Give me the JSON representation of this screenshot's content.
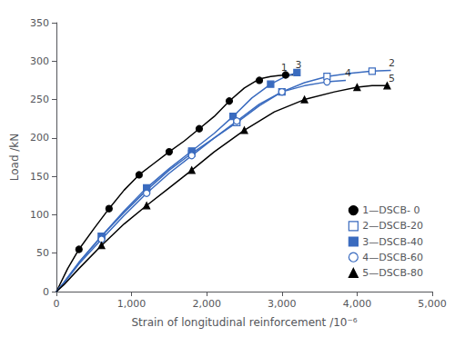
{
  "chart_data": {
    "type": "line",
    "xlabel": "Strain of longitudinal reinforcement /10⁻⁶",
    "ylabel": "Load /kN",
    "xlim": [
      0,
      5000
    ],
    "ylim": [
      0,
      350
    ],
    "xticks": [
      0,
      1000,
      2000,
      3000,
      4000,
      5000
    ],
    "yticks": [
      0,
      50,
      100,
      150,
      200,
      250,
      300,
      350
    ],
    "grid": false,
    "legend": "lower right",
    "series": [
      {
        "name": "1—DSCB- 0",
        "color": "black",
        "marker": "circle",
        "x": [
          0,
          50,
          150,
          300,
          500,
          700,
          900,
          1100,
          1300,
          1500,
          1700,
          1900,
          2100,
          2300,
          2500,
          2650,
          2750,
          2850,
          2950,
          3050,
          3150
        ],
        "values": [
          0,
          10,
          30,
          55,
          82,
          108,
          132,
          152,
          167,
          182,
          196,
          212,
          228,
          248,
          265,
          274,
          278,
          280,
          281,
          282,
          282
        ],
        "marker_x": [
          300,
          700,
          1100,
          1500,
          1900,
          2300,
          2700,
          3050
        ],
        "marker_values": [
          55,
          108,
          152,
          182,
          212,
          248,
          275,
          282
        ]
      },
      {
        "name": "2—DSCB-20",
        "color": "#3a6bbf",
        "marker": "open_square",
        "x": [
          0,
          100,
          300,
          600,
          900,
          1200,
          1500,
          1800,
          2100,
          2400,
          2700,
          3000,
          3300,
          3600,
          3900,
          4200,
          4450
        ],
        "values": [
          0,
          12,
          38,
          72,
          103,
          132,
          158,
          180,
          200,
          220,
          242,
          260,
          272,
          280,
          284,
          287,
          288
        ],
        "marker_x": [
          600,
          1200,
          1800,
          2400,
          3000,
          3600,
          4200
        ],
        "marker_values": [
          72,
          132,
          180,
          220,
          260,
          280,
          287
        ]
      },
      {
        "name": "3—DSCB-40",
        "color": "#3a6bbf",
        "marker": "square",
        "x": [
          0,
          100,
          300,
          600,
          900,
          1200,
          1500,
          1800,
          2100,
          2350,
          2600,
          2850,
          3050,
          3200
        ],
        "values": [
          0,
          12,
          38,
          72,
          105,
          135,
          160,
          183,
          206,
          228,
          252,
          270,
          280,
          285
        ],
        "marker_x": [
          600,
          1200,
          1800,
          2350,
          2850,
          3200
        ],
        "marker_values": [
          72,
          135,
          183,
          228,
          270,
          285
        ]
      },
      {
        "name": "4—DSCB-60",
        "color": "#3a6bbf",
        "marker": "open_circle",
        "x": [
          0,
          100,
          300,
          600,
          900,
          1200,
          1500,
          1800,
          2100,
          2400,
          2700,
          3000,
          3300,
          3600,
          3850
        ],
        "values": [
          0,
          11,
          36,
          68,
          99,
          128,
          154,
          177,
          200,
          222,
          244,
          260,
          268,
          273,
          275
        ],
        "marker_x": [
          600,
          1200,
          1800,
          2400,
          3000,
          3600
        ],
        "marker_values": [
          68,
          128,
          177,
          222,
          260,
          273
        ]
      },
      {
        "name": "5—DSCB-80",
        "color": "black",
        "marker": "triangle",
        "x": [
          0,
          100,
          300,
          600,
          900,
          1200,
          1500,
          1800,
          2100,
          2500,
          2900,
          3300,
          3700,
          4000,
          4200,
          4400
        ],
        "values": [
          0,
          9,
          30,
          60,
          88,
          112,
          135,
          158,
          182,
          210,
          234,
          250,
          260,
          266,
          268,
          268
        ],
        "marker_x": [
          600,
          1200,
          1800,
          2500,
          3300,
          4000,
          4400
        ],
        "marker_values": [
          60,
          112,
          158,
          210,
          250,
          266,
          268
        ]
      }
    ],
    "annotations": [
      {
        "text": "1",
        "x": 3030,
        "y": 284
      },
      {
        "text": "3",
        "x": 3220,
        "y": 287
      },
      {
        "text": "2",
        "x": 4460,
        "y": 290
      },
      {
        "text": "4",
        "x": 3880,
        "y": 277
      },
      {
        "text": "5",
        "x": 4460,
        "y": 270
      }
    ]
  }
}
